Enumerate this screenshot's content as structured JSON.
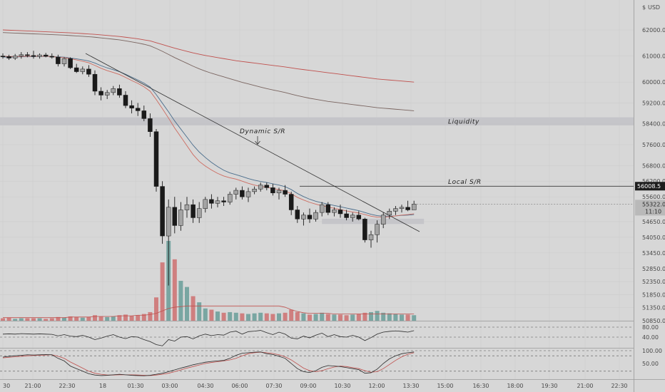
{
  "chart_data": {
    "type": "candlestick",
    "currency": "USD",
    "currency_prefix": "$",
    "price_ticks": [
      62000,
      61000,
      60000,
      59200,
      58400,
      57600,
      56800,
      56200,
      55600,
      54650,
      54050,
      53450,
      52850,
      52350,
      51850,
      51350,
      50850
    ],
    "price_tick_labels": [
      "62000.0",
      "61000.0",
      "60000.0",
      "59200.0",
      "58400.0",
      "57600.0",
      "56800.0",
      "56200.0",
      "55600.0",
      "54650.0",
      "54050.0",
      "53450.0",
      "52850.0",
      "52350.0",
      "51850.0",
      "51350.0",
      "50850.0"
    ],
    "time_labels": [
      "30",
      "21:00",
      "22:30",
      "18",
      "01:30",
      "03:00",
      "04:30",
      "06:00",
      "07:30",
      "09:00",
      "10:30",
      "12:00",
      "13:30",
      "15:00",
      "16:30",
      "18:00",
      "19:30",
      "21:00",
      "22:30"
    ],
    "annotations": {
      "liquidity_label": "Liquidity",
      "local_sr_label": "Local S/R",
      "dynamic_sr_label": "Dynamic S/R",
      "local_sr_price": 56008.5,
      "local_sr_price_label": "56008.5",
      "liquidity_zone": [
        58340,
        58650
      ],
      "support_zone": [
        54560,
        54760
      ]
    },
    "current_price_label": "55322.0",
    "countdown_label": "11:10",
    "candles": [
      {
        "o": 61000,
        "h": 61100,
        "l": 60900,
        "c": 60980
      },
      {
        "o": 60980,
        "h": 61050,
        "l": 60850,
        "c": 60920
      },
      {
        "o": 60920,
        "h": 61080,
        "l": 60850,
        "c": 61000
      },
      {
        "o": 61000,
        "h": 61150,
        "l": 60900,
        "c": 61050
      },
      {
        "o": 61050,
        "h": 61150,
        "l": 60950,
        "c": 61020
      },
      {
        "o": 61020,
        "h": 61200,
        "l": 60900,
        "c": 60980
      },
      {
        "o": 60980,
        "h": 61100,
        "l": 60900,
        "c": 61040
      },
      {
        "o": 61040,
        "h": 61120,
        "l": 60950,
        "c": 60990
      },
      {
        "o": 60990,
        "h": 61100,
        "l": 60900,
        "c": 60960
      },
      {
        "o": 60960,
        "h": 61050,
        "l": 60600,
        "c": 60700
      },
      {
        "o": 60700,
        "h": 60950,
        "l": 60600,
        "c": 60900
      },
      {
        "o": 60900,
        "h": 60950,
        "l": 60500,
        "c": 60550
      },
      {
        "o": 60550,
        "h": 60700,
        "l": 60350,
        "c": 60400
      },
      {
        "o": 60400,
        "h": 60600,
        "l": 60300,
        "c": 60500
      },
      {
        "o": 60500,
        "h": 60650,
        "l": 60200,
        "c": 60300
      },
      {
        "o": 60300,
        "h": 60450,
        "l": 59500,
        "c": 59650
      },
      {
        "o": 59650,
        "h": 59800,
        "l": 59300,
        "c": 59500
      },
      {
        "o": 59500,
        "h": 59700,
        "l": 59350,
        "c": 59600
      },
      {
        "o": 59600,
        "h": 59850,
        "l": 59500,
        "c": 59750
      },
      {
        "o": 59750,
        "h": 59900,
        "l": 59400,
        "c": 59500
      },
      {
        "o": 59500,
        "h": 59650,
        "l": 59000,
        "c": 59100
      },
      {
        "o": 59100,
        "h": 59300,
        "l": 58800,
        "c": 59000
      },
      {
        "o": 59000,
        "h": 59200,
        "l": 58700,
        "c": 58900
      },
      {
        "o": 58900,
        "h": 59100,
        "l": 58500,
        "c": 58600
      },
      {
        "o": 58600,
        "h": 58800,
        "l": 57900,
        "c": 58100
      },
      {
        "o": 58100,
        "h": 58200,
        "l": 55800,
        "c": 56000
      },
      {
        "o": 56000,
        "h": 56200,
        "l": 53800,
        "c": 54100
      },
      {
        "o": 54100,
        "h": 55500,
        "l": 52200,
        "c": 55200
      },
      {
        "o": 55200,
        "h": 55600,
        "l": 54200,
        "c": 54500
      },
      {
        "o": 54500,
        "h": 55400,
        "l": 54300,
        "c": 55100
      },
      {
        "o": 55100,
        "h": 55600,
        "l": 54800,
        "c": 55300
      },
      {
        "o": 55300,
        "h": 55500,
        "l": 54600,
        "c": 54800
      },
      {
        "o": 54800,
        "h": 55400,
        "l": 54600,
        "c": 55150
      },
      {
        "o": 55150,
        "h": 55600,
        "l": 55000,
        "c": 55500
      },
      {
        "o": 55500,
        "h": 55700,
        "l": 55150,
        "c": 55350
      },
      {
        "o": 55350,
        "h": 55600,
        "l": 55200,
        "c": 55450
      },
      {
        "o": 55450,
        "h": 55600,
        "l": 55250,
        "c": 55400
      },
      {
        "o": 55400,
        "h": 55800,
        "l": 55300,
        "c": 55700
      },
      {
        "o": 55700,
        "h": 55950,
        "l": 55500,
        "c": 55850
      },
      {
        "o": 55850,
        "h": 56000,
        "l": 55500,
        "c": 55600
      },
      {
        "o": 55600,
        "h": 55950,
        "l": 55400,
        "c": 55800
      },
      {
        "o": 55800,
        "h": 56000,
        "l": 55700,
        "c": 55900
      },
      {
        "o": 55900,
        "h": 56150,
        "l": 55800,
        "c": 56050
      },
      {
        "o": 56050,
        "h": 56150,
        "l": 55850,
        "c": 55950
      },
      {
        "o": 55950,
        "h": 56100,
        "l": 55650,
        "c": 55750
      },
      {
        "o": 55750,
        "h": 55950,
        "l": 55500,
        "c": 55850
      },
      {
        "o": 55850,
        "h": 56050,
        "l": 55600,
        "c": 55700
      },
      {
        "o": 55700,
        "h": 55800,
        "l": 54900,
        "c": 55100
      },
      {
        "o": 55100,
        "h": 55250,
        "l": 54600,
        "c": 54750
      },
      {
        "o": 54750,
        "h": 55000,
        "l": 54500,
        "c": 54900
      },
      {
        "o": 54900,
        "h": 55150,
        "l": 54600,
        "c": 54750
      },
      {
        "o": 54750,
        "h": 55100,
        "l": 54650,
        "c": 55000
      },
      {
        "o": 55000,
        "h": 55400,
        "l": 54850,
        "c": 55300
      },
      {
        "o": 55300,
        "h": 55400,
        "l": 54900,
        "c": 55000
      },
      {
        "o": 55000,
        "h": 55200,
        "l": 54850,
        "c": 55100
      },
      {
        "o": 55100,
        "h": 55300,
        "l": 54800,
        "c": 54950
      },
      {
        "o": 54950,
        "h": 55100,
        "l": 54700,
        "c": 54800
      },
      {
        "o": 54800,
        "h": 55000,
        "l": 54650,
        "c": 54900
      },
      {
        "o": 54900,
        "h": 55050,
        "l": 54700,
        "c": 54750
      },
      {
        "o": 54750,
        "h": 54800,
        "l": 53850,
        "c": 53950
      },
      {
        "o": 53950,
        "h": 54300,
        "l": 53650,
        "c": 54150
      },
      {
        "o": 54150,
        "h": 54700,
        "l": 53850,
        "c": 54550
      },
      {
        "o": 54550,
        "h": 55000,
        "l": 54400,
        "c": 54900
      },
      {
        "o": 54900,
        "h": 55150,
        "l": 54750,
        "c": 55050
      },
      {
        "o": 55050,
        "h": 55250,
        "l": 54900,
        "c": 55150
      },
      {
        "o": 55150,
        "h": 55300,
        "l": 55000,
        "c": 55200
      },
      {
        "o": 55200,
        "h": 55450,
        "l": 55050,
        "c": 55100
      },
      {
        "o": 55100,
        "h": 55450,
        "l": 55100,
        "c": 55322
      }
    ],
    "volume": [
      4,
      5,
      3,
      4,
      4,
      4,
      4,
      3,
      4,
      6,
      5,
      7,
      6,
      5,
      6,
      9,
      7,
      6,
      7,
      9,
      10,
      8,
      9,
      11,
      14,
      38,
      95,
      130,
      100,
      65,
      55,
      40,
      30,
      20,
      18,
      15,
      13,
      14,
      13,
      12,
      11,
      12,
      13,
      12,
      11,
      12,
      13,
      18,
      14,
      12,
      10,
      11,
      13,
      11,
      10,
      10,
      9,
      10,
      11,
      13,
      14,
      16,
      13,
      12,
      11,
      10,
      10,
      9
    ],
    "ma_fast": [
      60990,
      60985,
      60980,
      60985,
      60990,
      60990,
      60995,
      60990,
      60985,
      60950,
      60940,
      60900,
      60850,
      60800,
      60740,
      60640,
      60530,
      60440,
      60370,
      60290,
      60180,
      60060,
      59950,
      59820,
      59650,
      59330,
      58980,
      58620,
      58240,
      57900,
      57560,
      57220,
      56960,
      56780,
      56630,
      56500,
      56400,
      56330,
      56280,
      56200,
      56120,
      56050,
      56000,
      55970,
      55920,
      55880,
      55830,
      55720,
      55580,
      55480,
      55390,
      55320,
      55260,
      55210,
      55160,
      55110,
      55060,
      55020,
      54980,
      54920,
      54860,
      54820,
      54820,
      54840,
      54870,
      54900,
      54920,
      54950
    ],
    "ma_med": [
      60960,
      60960,
      60965,
      60970,
      60975,
      60980,
      60985,
      60985,
      60980,
      60965,
      60955,
      60925,
      60890,
      60855,
      60810,
      60730,
      60630,
      60545,
      60475,
      60400,
      60300,
      60190,
      60080,
      59960,
      59810,
      59520,
      59190,
      58860,
      58510,
      58200,
      57890,
      57580,
      57320,
      57110,
      56920,
      56760,
      56620,
      56520,
      56450,
      56380,
      56300,
      56240,
      56190,
      56150,
      56100,
      56050,
      55990,
      55880,
      55730,
      55610,
      55510,
      55430,
      55370,
      55320,
      55270,
      55220,
      55170,
      55120,
      55070,
      55000,
      54930,
      54880,
      54860,
      54860,
      54870,
      54890,
      54900,
      54920
    ],
    "ma_long_red": [
      62000,
      61990,
      61980,
      61970,
      61960,
      61950,
      61940,
      61930,
      61920,
      61910,
      61900,
      61890,
      61875,
      61860,
      61845,
      61830,
      61810,
      61790,
      61770,
      61750,
      61720,
      61690,
      61660,
      61620,
      61580,
      61510,
      61440,
      61370,
      61300,
      61240,
      61180,
      61120,
      61070,
      61020,
      60980,
      60940,
      60900,
      60860,
      60820,
      60790,
      60760,
      60730,
      60700,
      60670,
      60640,
      60610,
      60580,
      60545,
      60510,
      60480,
      60450,
      60420,
      60390,
      60360,
      60330,
      60300,
      60270,
      60240,
      60210,
      60180,
      60150,
      60120,
      60100,
      60080,
      60060,
      60040,
      60020,
      60000
    ],
    "ma_long_gray": [
      61900,
      61890,
      61880,
      61870,
      61860,
      61850,
      61840,
      61830,
      61820,
      61810,
      61800,
      61785,
      61770,
      61755,
      61740,
      61720,
      61695,
      61670,
      61645,
      61620,
      61580,
      61540,
      61500,
      61450,
      61390,
      61290,
      61180,
      61060,
      60940,
      60830,
      60720,
      60610,
      60510,
      60420,
      60340,
      60270,
      60200,
      60130,
      60060,
      59990,
      59930,
      59870,
      59810,
      59750,
      59700,
      59650,
      59600,
      59540,
      59480,
      59430,
      59380,
      59340,
      59300,
      59260,
      59230,
      59200,
      59170,
      59140,
      59110,
      59080,
      59050,
      59020,
      59000,
      58980,
      58960,
      58940,
      58920,
      58900
    ],
    "volume_ma": [
      5,
      5,
      5,
      5,
      5,
      5,
      5,
      5,
      5,
      5,
      5,
      6,
      6,
      6,
      6,
      7,
      7,
      7,
      7,
      8,
      8,
      8,
      9,
      9,
      10,
      12,
      16,
      20,
      22,
      23,
      24,
      24,
      24,
      24,
      24,
      24,
      24,
      24,
      24,
      24,
      24,
      24,
      24,
      24,
      24,
      24,
      22,
      18,
      15,
      13,
      12,
      12,
      12,
      12,
      11,
      11,
      11,
      11,
      11,
      11,
      11,
      11,
      11,
      11,
      11,
      11,
      11,
      11
    ],
    "rsi": {
      "ticks": [
        80,
        40
      ],
      "tick_labels": [
        "80.00",
        "40.00"
      ],
      "values": [
        52,
        53,
        52,
        54,
        53,
        52,
        53,
        52,
        51,
        45,
        50,
        44,
        42,
        47,
        40,
        30,
        36,
        44,
        50,
        40,
        34,
        42,
        40,
        30,
        22,
        10,
        5,
        30,
        24,
        40,
        42,
        33,
        45,
        52,
        46,
        50,
        48,
        60,
        64,
        52,
        62,
        64,
        67,
        58,
        50,
        60,
        52,
        36,
        33,
        44,
        37,
        48,
        56,
        42,
        50,
        42,
        40,
        47,
        40,
        26,
        38,
        52,
        60,
        63,
        65,
        63,
        60,
        66
      ]
    },
    "stoch": {
      "ticks": [
        100,
        50
      ],
      "tick_labels": [
        "100.00",
        "50.00"
      ],
      "k": [
        75,
        78,
        80,
        82,
        84,
        83,
        84,
        85,
        84,
        70,
        60,
        40,
        30,
        20,
        10,
        5,
        3,
        4,
        6,
        8,
        6,
        4,
        3,
        2,
        4,
        8,
        12,
        18,
        25,
        32,
        38,
        45,
        50,
        55,
        58,
        60,
        62,
        70,
        82,
        90,
        92,
        94,
        95,
        88,
        85,
        78,
        70,
        50,
        30,
        18,
        15,
        22,
        35,
        42,
        40,
        38,
        34,
        30,
        26,
        12,
        14,
        28,
        50,
        68,
        80,
        88,
        92,
        95
      ],
      "d": [
        72,
        74,
        76,
        78,
        80,
        81,
        82,
        83,
        84,
        78,
        70,
        56,
        44,
        32,
        20,
        12,
        8,
        5,
        5,
        6,
        6,
        6,
        5,
        4,
        3,
        5,
        8,
        12,
        18,
        25,
        32,
        38,
        44,
        50,
        54,
        57,
        60,
        64,
        70,
        80,
        88,
        92,
        94,
        92,
        89,
        84,
        76,
        64,
        48,
        32,
        22,
        18,
        22,
        30,
        36,
        40,
        38,
        34,
        30,
        22,
        16,
        18,
        30,
        46,
        62,
        76,
        86,
        92
      ]
    }
  }
}
